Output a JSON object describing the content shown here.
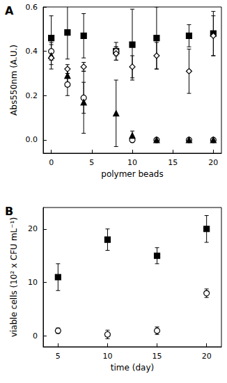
{
  "chart_data": [
    {
      "type": "scatter",
      "title": "A",
      "x_label": "polymer beads",
      "y_label": "Abs550nm (A.U.)",
      "grid": false,
      "xlim": [
        -1,
        21
      ],
      "xticks": [
        0,
        5,
        10,
        15,
        20
      ],
      "ylim": [
        -0.06,
        0.6
      ],
      "yticks": [
        {
          "value": 0,
          "label": "0.0"
        },
        {
          "value": 0.2,
          "label": "0.2"
        },
        {
          "value": 0.4,
          "label": "0.4"
        },
        {
          "value": 0.6,
          "label": "0.6"
        }
      ],
      "x": [
        0,
        2,
        4,
        8,
        10,
        13,
        17,
        20
      ],
      "series": [
        {
          "color": "#000000",
          "marker": "square",
          "values": [
            0.46,
            0.485,
            0.47,
            0.4,
            0.43,
            0.46,
            0.47,
            0.48
          ],
          "errors": [
            0.1,
            0.12,
            0.1,
            0.04,
            0.16,
            0.14,
            0.05,
            0.1
          ]
        },
        {
          "color": "#000000",
          "marker": "circle-open",
          "values": [
            0.4,
            0.25,
            0.19,
            0.4,
            0.0,
            0.0,
            0.0,
            0.0
          ],
          "errors": [
            0.03,
            0.05,
            0.07,
            0.02,
            0.01,
            0.005,
            0.005,
            0.005
          ]
        },
        {
          "color": "#000000",
          "marker": "triangle",
          "values": [
            0.38,
            0.29,
            0.17,
            0.12,
            0.02,
            0.0,
            0.0,
            0.0
          ],
          "errors": [
            0.06,
            0.03,
            0.14,
            0.15,
            0.02,
            0.005,
            0.005,
            0.005
          ]
        },
        {
          "color": "#000000",
          "marker": "diamond-open",
          "values": [
            0.37,
            0.32,
            0.33,
            0.39,
            0.33,
            0.38,
            0.31,
            0.47
          ],
          "errors": [
            0.03,
            0.02,
            0.02,
            0.03,
            0.05,
            0.06,
            0.1,
            0.09
          ]
        }
      ]
    },
    {
      "type": "scatter",
      "title": "B",
      "x_label": "time (day)",
      "y_label": "viable cells (10² x CFU mL⁻¹)",
      "grid": false,
      "xlim": [
        3.5,
        21.5
      ],
      "xticks": [
        5,
        10,
        15,
        20
      ],
      "ylim": [
        -2,
        24
      ],
      "yticks": [
        0,
        10,
        20
      ],
      "x": [
        5,
        10,
        15,
        20
      ],
      "series": [
        {
          "color": "#000000",
          "marker": "square",
          "values": [
            11,
            18,
            15,
            20
          ],
          "errors": [
            2.5,
            2,
            1.5,
            2.5
          ]
        },
        {
          "color": "#000000",
          "marker": "circle-open",
          "values": [
            1,
            0.3,
            1,
            8
          ],
          "errors": [
            0.5,
            0.8,
            0.7,
            0.8
          ]
        }
      ]
    }
  ]
}
